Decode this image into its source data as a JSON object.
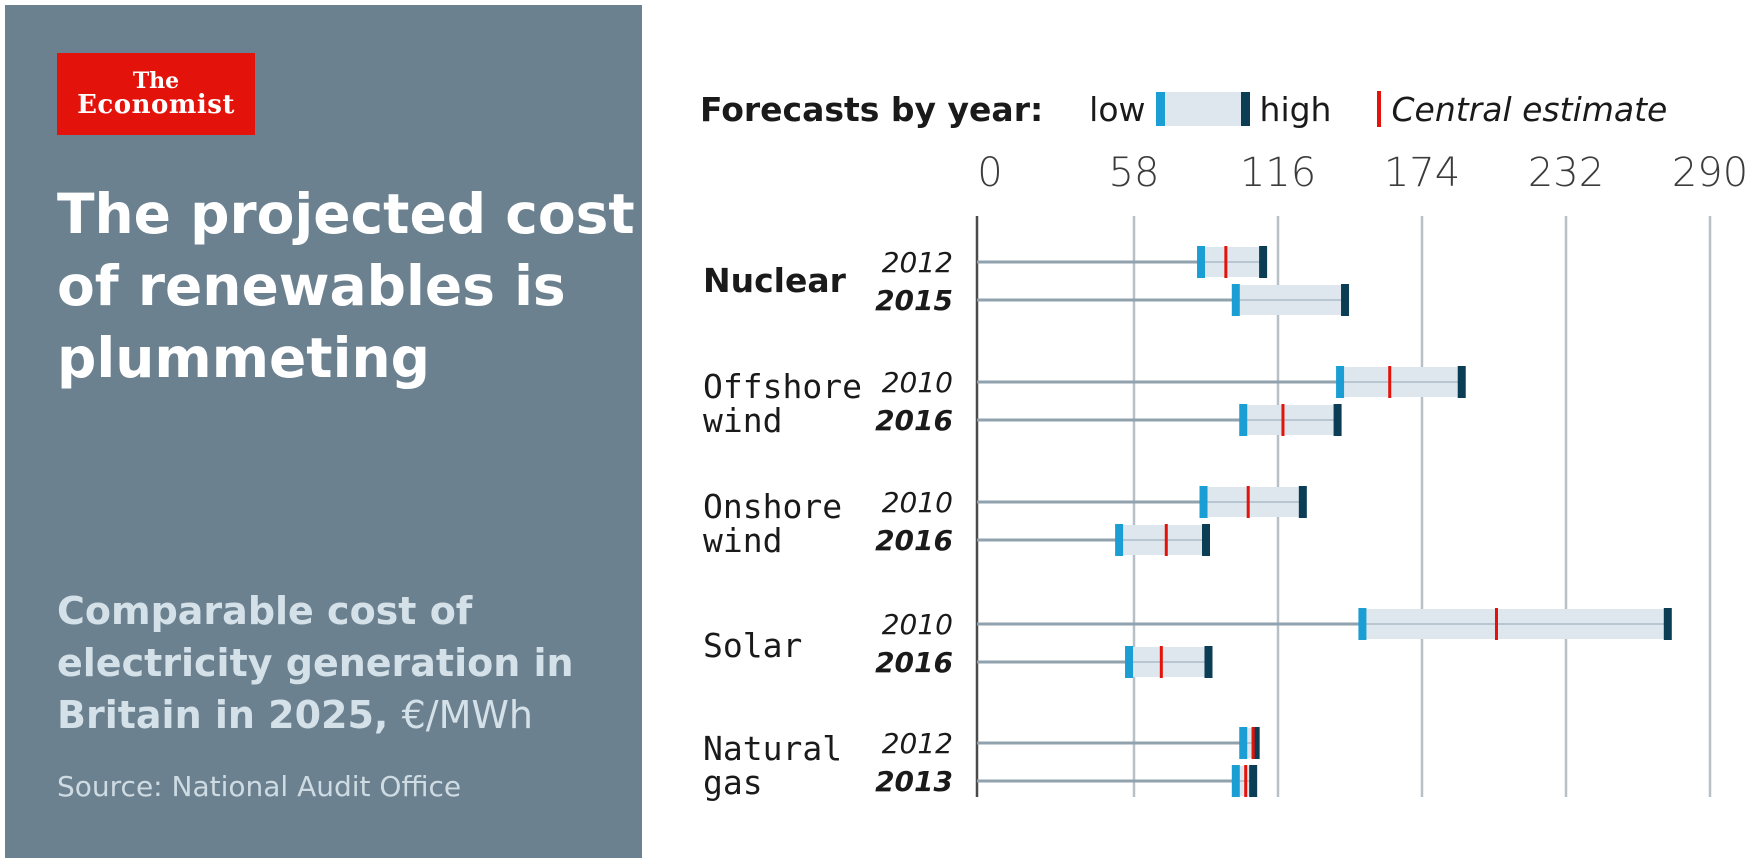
{
  "brand": {
    "line1": "The",
    "line2": "Economist",
    "color": "#e3120b"
  },
  "headline": "The projected cost of renewables is plummeting",
  "subtitle": {
    "text": "Comparable cost of electricity generation in Britain in 2025,",
    "unit": "€/MWh"
  },
  "source": "Source: National Audit Office",
  "legend": {
    "label": "Forecasts by year:",
    "low": "low",
    "high": "high",
    "central": "Central estimate"
  },
  "colors": {
    "low": "#1a9ed4",
    "high": "#0b3d55",
    "central": "#e3120b",
    "range": "#dfe7ee",
    "stem": "#90a2ae",
    "panel": "#6b8190"
  },
  "chart_data": {
    "type": "range",
    "xlim": [
      0,
      290
    ],
    "ticks": [
      0,
      58,
      116,
      174,
      232,
      290
    ],
    "groups": [
      {
        "name": [
          "Nuclear"
        ],
        "bold": true,
        "rows": [
          {
            "year": "2012",
            "bold": false,
            "low": 85,
            "central": 95,
            "high": 110
          },
          {
            "year": "2015",
            "bold": true,
            "low": 99,
            "central": null,
            "high": 143
          }
        ]
      },
      {
        "name": [
          "Offshore",
          "wind"
        ],
        "bold": false,
        "rows": [
          {
            "year": "2010",
            "bold": false,
            "low": 141,
            "central": 161,
            "high": 190
          },
          {
            "year": "2016",
            "bold": true,
            "low": 102,
            "central": 118,
            "high": 140
          }
        ]
      },
      {
        "name": [
          "Onshore",
          "wind"
        ],
        "bold": false,
        "rows": [
          {
            "year": "2010",
            "bold": false,
            "low": 86,
            "central": 104,
            "high": 126
          },
          {
            "year": "2016",
            "bold": true,
            "low": 52,
            "central": 71,
            "high": 87
          }
        ]
      },
      {
        "name": [
          "Solar"
        ],
        "bold": false,
        "rows": [
          {
            "year": "2010",
            "bold": false,
            "low": 150,
            "central": 204,
            "high": 273
          },
          {
            "year": "2016",
            "bold": true,
            "low": 56,
            "central": 69,
            "high": 88
          }
        ]
      },
      {
        "name": [
          "Natural",
          "gas"
        ],
        "bold": false,
        "rows": [
          {
            "year": "2012",
            "bold": false,
            "low": 102,
            "central": 106,
            "high": 107
          },
          {
            "year": "2013",
            "bold": true,
            "low": 99,
            "central": 103,
            "high": 106
          }
        ]
      }
    ]
  }
}
